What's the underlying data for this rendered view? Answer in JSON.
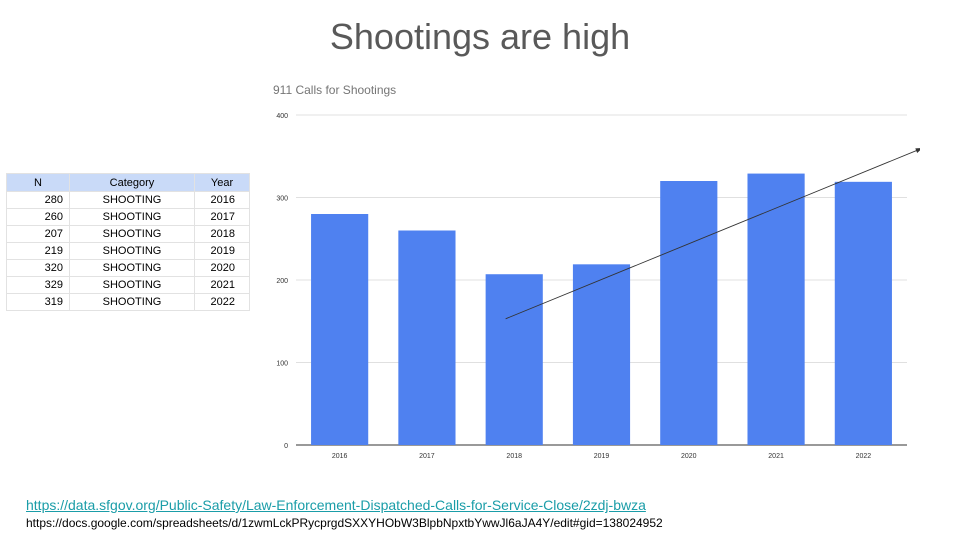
{
  "slide": {
    "title": "Shootings are high",
    "links": {
      "data_source": "https://data.sfgov.org/Public-Safety/Law-Enforcement-Dispatched-Calls-for-Service-Close/2zdj-bwza",
      "spreadsheet": "https://docs.google.com/spreadsheets/d/1zwmLckPRycprgdSXXYHObW3BlpbNpxtbYwwJl6aJA4Y/edit#gid=138024952"
    }
  },
  "table": {
    "headers": [
      "N",
      "Category",
      "Year"
    ],
    "rows": [
      [
        "280",
        "SHOOTING",
        "2016"
      ],
      [
        "260",
        "SHOOTING",
        "2017"
      ],
      [
        "207",
        "SHOOTING",
        "2018"
      ],
      [
        "219",
        "SHOOTING",
        "2019"
      ],
      [
        "320",
        "SHOOTING",
        "2020"
      ],
      [
        "329",
        "SHOOTING",
        "2021"
      ],
      [
        "319",
        "SHOOTING",
        "2022"
      ]
    ]
  },
  "chart_data": {
    "type": "bar",
    "title": "911 Calls for Shootings",
    "categories": [
      "2016",
      "2017",
      "2018",
      "2019",
      "2020",
      "2021",
      "2022"
    ],
    "values": [
      280,
      260,
      207,
      219,
      320,
      329,
      319
    ],
    "ylim": [
      0,
      400
    ],
    "yticks": [
      0,
      100,
      200,
      300,
      400
    ],
    "grid": true,
    "bar_color": "#4f81f0",
    "trend_arrow": {
      "x_start": "2018",
      "y_start": 153,
      "x_end": "2022",
      "y_end": 360
    }
  }
}
